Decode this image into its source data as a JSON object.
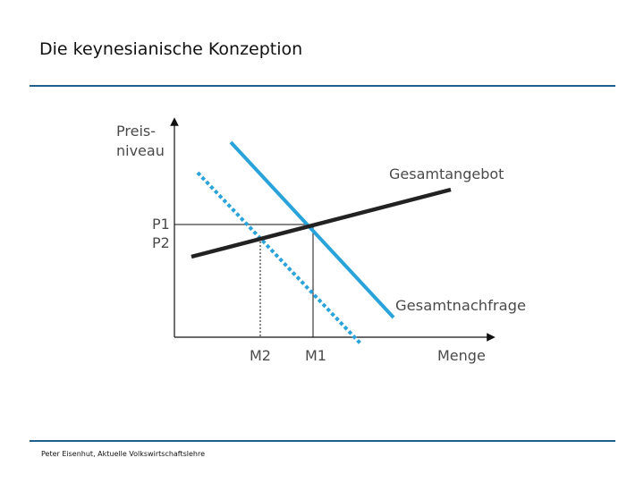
{
  "slide": {
    "title": "Die keynesianische Konzeption",
    "footer": "Peter Eisenhut, Aktuelle Volkswirtschaftslehre"
  },
  "diagram": {
    "y_axis_label_line1": "Preis-",
    "y_axis_label_line2": "niveau",
    "x_axis_label": "Menge",
    "p1_label": "P1",
    "p2_label": "P2",
    "m1_label": "M1",
    "m2_label": "M2",
    "supply_label": "Gesamtangebot",
    "demand_label": "Gesamtnachfrage",
    "colors": {
      "supply": "#222222",
      "demand": "#29a3d9",
      "demand_shifted": "#29a3d9",
      "axis": "#111111",
      "rule": "#1f5f8b"
    }
  }
}
